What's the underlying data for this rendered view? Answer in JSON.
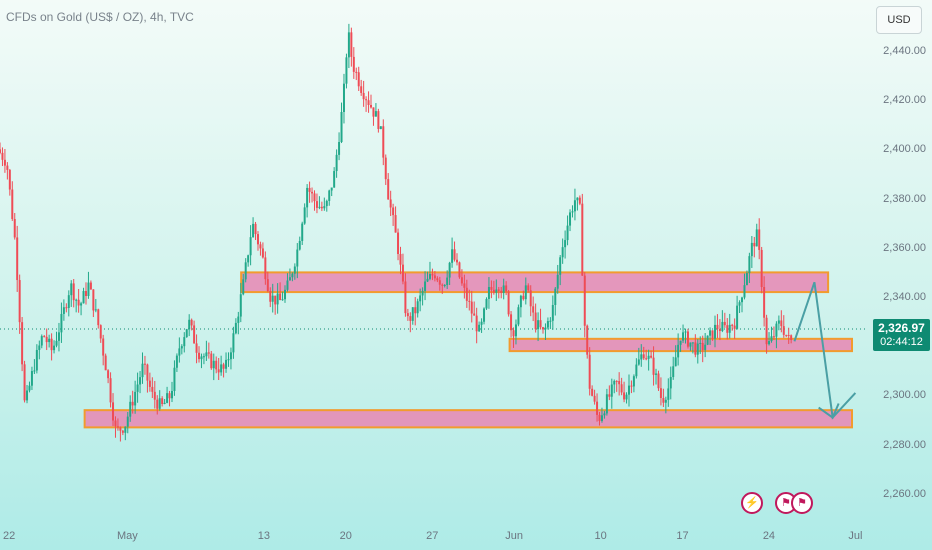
{
  "header": {
    "title": "CFDs on Gold (US$ / OZ), 4h, TVC",
    "currency": "USD"
  },
  "price_label": {
    "price": "2,326.97",
    "countdown": "02:44:12"
  },
  "colors": {
    "up": "#22a88a",
    "down": "#ef4b55",
    "zone_fill": "#e786b3",
    "zone_border": "#f29b2e",
    "arrow": "#4a9fa4",
    "price_line": "#0e8a72"
  },
  "events": [
    {
      "icon": "lightning-icon"
    },
    {
      "icon": "us-flag-icon"
    },
    {
      "icon": "us-flag-icon"
    }
  ],
  "chart_data": {
    "type": "candlestick",
    "title": "CFDs on Gold (US$ / OZ), 4h, TVC",
    "ylim": [
      2250,
      2455
    ],
    "y_ticks": [
      "2,440.00",
      "2,420.00",
      "2,400.00",
      "2,380.00",
      "2,360.00",
      "2,340.00",
      "2,320.00",
      "2,300.00",
      "2,280.00",
      "2,260.00"
    ],
    "y_tick_values": [
      2440,
      2420,
      2400,
      2380,
      2360,
      2340,
      2320,
      2300,
      2280,
      2260
    ],
    "x_ticks": [
      "22",
      "May",
      "13",
      "20",
      "27",
      "Jun",
      "10",
      "17",
      "24",
      "Jul"
    ],
    "x_tick_pos": [
      0.01,
      0.14,
      0.29,
      0.38,
      0.475,
      0.565,
      0.66,
      0.75,
      0.845,
      0.94
    ],
    "last_price": 2326.97,
    "zones": [
      {
        "low": 2342,
        "high": 2350,
        "x_start": 0.265,
        "x_end": 0.91
      },
      {
        "low": 2318,
        "high": 2323,
        "x_start": 0.56,
        "x_end": 0.955
      },
      {
        "low": 2287,
        "high": 2294,
        "x_start": 0.093,
        "x_end": 0.983
      }
    ],
    "path": [
      [
        0.0,
        2400
      ],
      [
        0.01,
        2395
      ],
      [
        0.02,
        2360
      ],
      [
        0.03,
        2295
      ],
      [
        0.04,
        2312
      ],
      [
        0.05,
        2325
      ],
      [
        0.06,
        2318
      ],
      [
        0.07,
        2330
      ],
      [
        0.08,
        2345
      ],
      [
        0.09,
        2336
      ],
      [
        0.1,
        2345
      ],
      [
        0.11,
        2330
      ],
      [
        0.12,
        2310
      ],
      [
        0.13,
        2285
      ],
      [
        0.14,
        2288
      ],
      [
        0.15,
        2300
      ],
      [
        0.16,
        2312
      ],
      [
        0.17,
        2300
      ],
      [
        0.18,
        2295
      ],
      [
        0.19,
        2300
      ],
      [
        0.2,
        2320
      ],
      [
        0.21,
        2330
      ],
      [
        0.22,
        2318
      ],
      [
        0.23,
        2315
      ],
      [
        0.24,
        2312
      ],
      [
        0.25,
        2310
      ],
      [
        0.26,
        2325
      ],
      [
        0.27,
        2345
      ],
      [
        0.28,
        2370
      ],
      [
        0.29,
        2358
      ],
      [
        0.3,
        2340
      ],
      [
        0.31,
        2338
      ],
      [
        0.32,
        2345
      ],
      [
        0.33,
        2360
      ],
      [
        0.34,
        2385
      ],
      [
        0.35,
        2378
      ],
      [
        0.36,
        2375
      ],
      [
        0.37,
        2390
      ],
      [
        0.38,
        2420
      ],
      [
        0.385,
        2448
      ],
      [
        0.39,
        2435
      ],
      [
        0.4,
        2425
      ],
      [
        0.41,
        2418
      ],
      [
        0.42,
        2410
      ],
      [
        0.43,
        2380
      ],
      [
        0.44,
        2360
      ],
      [
        0.45,
        2330
      ],
      [
        0.46,
        2335
      ],
      [
        0.47,
        2345
      ],
      [
        0.48,
        2350
      ],
      [
        0.49,
        2345
      ],
      [
        0.5,
        2358
      ],
      [
        0.51,
        2345
      ],
      [
        0.52,
        2335
      ],
      [
        0.53,
        2325
      ],
      [
        0.54,
        2342
      ],
      [
        0.55,
        2346
      ],
      [
        0.56,
        2340
      ],
      [
        0.565,
        2325
      ],
      [
        0.57,
        2330
      ],
      [
        0.58,
        2345
      ],
      [
        0.59,
        2330
      ],
      [
        0.6,
        2325
      ],
      [
        0.61,
        2335
      ],
      [
        0.62,
        2360
      ],
      [
        0.63,
        2375
      ],
      [
        0.635,
        2380
      ],
      [
        0.64,
        2375
      ],
      [
        0.645,
        2330
      ],
      [
        0.65,
        2305
      ],
      [
        0.66,
        2290
      ],
      [
        0.67,
        2298
      ],
      [
        0.68,
        2305
      ],
      [
        0.69,
        2300
      ],
      [
        0.7,
        2310
      ],
      [
        0.71,
        2318
      ],
      [
        0.72,
        2312
      ],
      [
        0.73,
        2298
      ],
      [
        0.74,
        2305
      ],
      [
        0.75,
        2325
      ],
      [
        0.76,
        2322
      ],
      [
        0.77,
        2318
      ],
      [
        0.78,
        2322
      ],
      [
        0.79,
        2328
      ],
      [
        0.8,
        2327
      ],
      [
        0.81,
        2330
      ],
      [
        0.82,
        2345
      ],
      [
        0.83,
        2362
      ],
      [
        0.835,
        2365
      ],
      [
        0.84,
        2345
      ],
      [
        0.845,
        2320
      ],
      [
        0.85,
        2322
      ],
      [
        0.86,
        2330
      ],
      [
        0.87,
        2322
      ]
    ],
    "projection": [
      [
        0.873,
        2322
      ],
      [
        0.895,
        2346
      ],
      [
        0.915,
        2291
      ],
      [
        0.94,
        2301
      ]
    ]
  }
}
